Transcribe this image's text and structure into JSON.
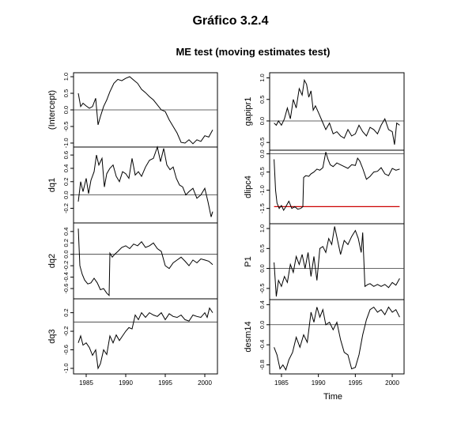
{
  "page": {
    "header_title": "Gráfico 3.2.4",
    "chart_title": "ME test (moving estimates test)",
    "x_axis_title": "Time"
  },
  "chart_data": {
    "type": "line",
    "title": "ME test (moving estimates test)",
    "x_ticks": [
      1985,
      1990,
      1995,
      2000
    ],
    "x_range": [
      1983.4,
      2001.6
    ],
    "x_axis_title": "Time",
    "panels": [
      {
        "column": "left",
        "label": "(Intercept)",
        "ylim": [
          -1.12,
          1.12
        ],
        "y_ticks": [
          1.0,
          0.5,
          0.0,
          -0.5,
          -1.0
        ],
        "y_tick_labels": [
          "1.0",
          "0.5",
          "0.0",
          "-0.5",
          "-1.0"
        ],
        "ref_lines": [
          0
        ],
        "boundary_line": null,
        "x": [
          1984.0,
          1984.3,
          1984.6,
          1985.0,
          1985.4,
          1985.8,
          1986.2,
          1986.5,
          1986.8,
          1987.2,
          1987.6,
          1988.0,
          1988.5,
          1989.0,
          1989.5,
          1990.0,
          1990.5,
          1991.0,
          1991.5,
          1992.0,
          1992.5,
          1993.0,
          1993.5,
          1994.0,
          1994.5,
          1995.0,
          1995.5,
          1996.0,
          1996.5,
          1997.0,
          1997.5,
          1998.0,
          1998.5,
          1999.0,
          1999.5,
          2000.0,
          2000.5,
          2001.0
        ],
        "y": [
          0.5,
          0.1,
          0.2,
          0.12,
          0.05,
          0.1,
          0.35,
          -0.45,
          -0.2,
          0.1,
          0.3,
          0.55,
          0.8,
          0.92,
          0.88,
          0.95,
          1.0,
          0.9,
          0.8,
          0.62,
          0.52,
          0.4,
          0.3,
          0.15,
          0.0,
          -0.05,
          -0.3,
          -0.5,
          -0.7,
          -0.98,
          -1.0,
          -0.9,
          -1.02,
          -0.9,
          -0.95,
          -0.78,
          -0.82,
          -0.6
        ]
      },
      {
        "column": "left",
        "label": "dq1",
        "ylim": [
          -0.42,
          0.72
        ],
        "y_ticks": [
          0.6,
          0.4,
          0.2,
          0.0,
          -0.2
        ],
        "y_tick_labels": [
          "0.6",
          "0.4",
          "0.2",
          "0.0",
          "-0.2"
        ],
        "ref_lines": [
          0
        ],
        "boundary_line": null,
        "x": [
          1984.0,
          1984.3,
          1984.6,
          1985.0,
          1985.3,
          1985.6,
          1986.0,
          1986.3,
          1986.6,
          1987.0,
          1987.3,
          1987.6,
          1988.0,
          1988.4,
          1988.8,
          1989.2,
          1989.6,
          1990.0,
          1990.4,
          1990.8,
          1991.2,
          1991.6,
          1992.0,
          1992.5,
          1993.0,
          1993.5,
          1994.0,
          1994.4,
          1994.8,
          1995.2,
          1995.6,
          1996.0,
          1996.4,
          1996.8,
          1997.2,
          1997.6,
          1998.0,
          1998.5,
          1999.0,
          1999.5,
          2000.0,
          2000.4,
          2000.8,
          2001.0
        ],
        "y": [
          -0.1,
          0.2,
          0.05,
          0.25,
          0.02,
          0.22,
          0.35,
          0.6,
          0.45,
          0.55,
          0.12,
          0.32,
          0.4,
          0.45,
          0.28,
          0.2,
          0.35,
          0.32,
          0.25,
          0.55,
          0.3,
          0.35,
          0.28,
          0.42,
          0.52,
          0.55,
          0.72,
          0.5,
          0.7,
          0.45,
          0.38,
          0.42,
          0.25,
          0.15,
          0.12,
          0.0,
          0.05,
          0.1,
          -0.05,
          0.0,
          0.1,
          -0.1,
          -0.33,
          -0.25
        ]
      },
      {
        "column": "left",
        "label": "dq2",
        "ylim": [
          -0.78,
          0.55
        ],
        "y_ticks": [
          0.4,
          0.2,
          0.0,
          -0.2,
          -0.4,
          -0.6
        ],
        "y_tick_labels": [
          "0.4",
          "0.2",
          "0.0",
          "-0.2",
          "-0.4",
          "-0.6"
        ],
        "ref_lines": [
          0
        ],
        "boundary_line": null,
        "x": [
          1984.0,
          1984.2,
          1984.5,
          1984.8,
          1985.2,
          1985.6,
          1986.0,
          1986.4,
          1986.8,
          1987.2,
          1987.6,
          1987.9,
          1988.0,
          1988.3,
          1988.6,
          1989.0,
          1989.5,
          1990.0,
          1990.5,
          1991.0,
          1991.5,
          1992.0,
          1992.5,
          1993.0,
          1993.5,
          1994.0,
          1994.5,
          1995.0,
          1995.5,
          1996.0,
          1996.5,
          1997.0,
          1997.5,
          1998.0,
          1998.5,
          1999.0,
          1999.5,
          2000.0,
          2000.5,
          2001.0
        ],
        "y": [
          0.45,
          -0.2,
          -0.35,
          -0.45,
          -0.52,
          -0.5,
          -0.42,
          -0.5,
          -0.62,
          -0.6,
          -0.68,
          -0.72,
          0.02,
          -0.05,
          0.0,
          0.05,
          0.12,
          0.15,
          0.1,
          0.18,
          0.15,
          0.22,
          0.12,
          0.15,
          0.2,
          0.1,
          0.05,
          -0.2,
          -0.25,
          -0.15,
          -0.1,
          -0.05,
          -0.12,
          -0.2,
          -0.1,
          -0.15,
          -0.08,
          -0.1,
          -0.12,
          -0.18
        ]
      },
      {
        "column": "left",
        "label": "dq3",
        "ylim": [
          -1.12,
          0.5
        ],
        "y_ticks": [
          0.2,
          -0.2,
          -0.6,
          -1.0
        ],
        "y_tick_labels": [
          "0.2",
          "-0.2",
          "-0.6",
          "-1.0"
        ],
        "ref_lines": [
          0
        ],
        "boundary_line": null,
        "x": [
          1984.0,
          1984.3,
          1984.6,
          1985.0,
          1985.4,
          1985.8,
          1986.2,
          1986.5,
          1986.8,
          1987.2,
          1987.6,
          1988.0,
          1988.4,
          1988.8,
          1989.2,
          1989.6,
          1990.0,
          1990.4,
          1990.8,
          1991.2,
          1991.6,
          1992.0,
          1992.5,
          1993.0,
          1993.5,
          1994.0,
          1994.5,
          1995.0,
          1995.5,
          1996.0,
          1996.5,
          1997.0,
          1997.5,
          1998.0,
          1998.5,
          1999.0,
          1999.5,
          2000.0,
          2000.3,
          2000.6,
          2001.0
        ],
        "y": [
          -0.45,
          -0.3,
          -0.5,
          -0.45,
          -0.55,
          -0.72,
          -0.6,
          -1.0,
          -0.9,
          -0.6,
          -0.7,
          -0.3,
          -0.45,
          -0.28,
          -0.4,
          -0.3,
          -0.2,
          -0.12,
          -0.15,
          0.15,
          0.05,
          0.2,
          0.1,
          0.2,
          0.15,
          0.12,
          0.2,
          0.05,
          0.18,
          0.12,
          0.1,
          0.15,
          0.05,
          0.02,
          0.15,
          0.12,
          0.1,
          0.2,
          0.1,
          0.3,
          0.2
        ]
      },
      {
        "column": "right",
        "label": "gapipr1",
        "ylim": [
          -0.68,
          1.12
        ],
        "y_ticks": [
          1.0,
          0.5,
          0.0,
          -0.5
        ],
        "y_tick_labels": [
          "1.0",
          "0.5",
          "0.0",
          "-0.5"
        ],
        "ref_lines": [
          0
        ],
        "boundary_line": null,
        "x": [
          1984.0,
          1984.3,
          1984.6,
          1985.0,
          1985.4,
          1985.8,
          1986.2,
          1986.6,
          1987.0,
          1987.4,
          1987.8,
          1988.1,
          1988.4,
          1988.7,
          1989.0,
          1989.3,
          1989.6,
          1990.0,
          1990.5,
          1991.0,
          1991.5,
          1992.0,
          1992.5,
          1993.0,
          1993.5,
          1994.0,
          1994.5,
          1995.0,
          1995.5,
          1996.0,
          1996.5,
          1997.0,
          1997.5,
          1998.0,
          1998.5,
          1999.0,
          1999.5,
          2000.0,
          2000.3,
          2000.6,
          2001.0
        ],
        "y": [
          -0.05,
          -0.1,
          0.0,
          -0.1,
          0.05,
          0.3,
          0.05,
          0.5,
          0.3,
          0.75,
          0.6,
          0.95,
          0.85,
          0.55,
          0.7,
          0.25,
          0.35,
          0.2,
          0.0,
          -0.2,
          -0.05,
          -0.3,
          -0.25,
          -0.35,
          -0.4,
          -0.2,
          -0.35,
          -0.3,
          -0.1,
          -0.25,
          -0.35,
          -0.15,
          -0.2,
          -0.3,
          -0.1,
          0.05,
          -0.2,
          -0.25,
          -0.55,
          -0.05,
          -0.1
        ]
      },
      {
        "column": "right",
        "label": "dlipc4",
        "ylim": [
          -1.92,
          0.1
        ],
        "y_ticks": [
          0.0,
          -0.5,
          -1.0,
          -1.5
        ],
        "y_tick_labels": [
          "0.0",
          "-0.5",
          "-1.0",
          "-1.5"
        ],
        "ref_lines": [
          0
        ],
        "boundary_line": -1.45,
        "x": [
          1984.0,
          1984.2,
          1984.4,
          1984.7,
          1985.0,
          1985.3,
          1985.6,
          1986.0,
          1986.4,
          1986.8,
          1987.2,
          1987.6,
          1987.9,
          1988.0,
          1988.3,
          1988.7,
          1989.0,
          1989.4,
          1989.8,
          1990.2,
          1990.6,
          1991.0,
          1991.3,
          1991.6,
          1992.0,
          1992.5,
          1993.0,
          1993.5,
          1994.0,
          1994.5,
          1995.0,
          1995.3,
          1995.6,
          1996.0,
          1996.5,
          1997.0,
          1997.5,
          1998.0,
          1998.5,
          1999.0,
          1999.5,
          2000.0,
          2000.5,
          2001.0
        ],
        "y": [
          -0.15,
          -1.0,
          -1.35,
          -1.5,
          -1.42,
          -1.55,
          -1.45,
          -1.3,
          -1.5,
          -1.45,
          -1.52,
          -1.5,
          -1.45,
          -0.65,
          -0.6,
          -0.62,
          -0.55,
          -0.5,
          -0.42,
          -0.45,
          -0.38,
          0.05,
          -0.15,
          -0.3,
          -0.35,
          -0.25,
          -0.3,
          -0.35,
          -0.4,
          -0.3,
          -0.32,
          -0.12,
          -0.2,
          -0.4,
          -0.7,
          -0.62,
          -0.5,
          -0.48,
          -0.38,
          -0.55,
          -0.6,
          -0.4,
          -0.45,
          -0.42
        ]
      },
      {
        "column": "right",
        "label": "P1",
        "ylim": [
          -0.78,
          1.12
        ],
        "y_ticks": [
          1.0,
          0.5,
          0.0,
          -0.5
        ],
        "y_tick_labels": [
          "1.0",
          "0.5",
          "0.0",
          "-0.5"
        ],
        "ref_lines": [
          0
        ],
        "boundary_line": null,
        "x": [
          1984.0,
          1984.3,
          1984.6,
          1985.0,
          1985.4,
          1985.8,
          1986.2,
          1986.6,
          1987.0,
          1987.4,
          1987.8,
          1988.2,
          1988.6,
          1989.0,
          1989.4,
          1989.8,
          1990.2,
          1990.6,
          1991.0,
          1991.4,
          1991.8,
          1992.2,
          1992.6,
          1993.0,
          1993.5,
          1994.0,
          1994.5,
          1995.0,
          1995.4,
          1995.8,
          1996.0,
          1996.3,
          1996.7,
          1997.0,
          1997.5,
          1998.0,
          1998.5,
          1999.0,
          1999.5,
          2000.0,
          2000.5,
          2001.0
        ],
        "y": [
          0.15,
          -0.7,
          -0.3,
          -0.45,
          -0.2,
          -0.35,
          0.1,
          -0.1,
          0.3,
          0.1,
          0.35,
          0.0,
          0.4,
          -0.2,
          0.3,
          -0.3,
          0.5,
          0.55,
          0.4,
          0.75,
          0.6,
          1.05,
          0.7,
          0.35,
          0.7,
          0.6,
          0.8,
          0.95,
          0.75,
          0.4,
          0.9,
          -0.45,
          -0.4,
          -0.38,
          -0.45,
          -0.4,
          -0.45,
          -0.4,
          -0.48,
          -0.35,
          -0.42,
          -0.25
        ]
      },
      {
        "column": "right",
        "label": "desm14",
        "ylim": [
          -0.98,
          0.5
        ],
        "y_ticks": [
          0.4,
          0.0,
          -0.4,
          -0.8
        ],
        "y_tick_labels": [
          "0.4",
          "0.0",
          "-0.4",
          "-0.8"
        ],
        "ref_lines": [
          0
        ],
        "boundary_line": null,
        "x": [
          1984.0,
          1984.4,
          1984.8,
          1985.2,
          1985.6,
          1986.0,
          1986.5,
          1987.0,
          1987.5,
          1988.0,
          1988.5,
          1989.0,
          1989.4,
          1989.8,
          1990.2,
          1990.6,
          1991.0,
          1991.5,
          1992.0,
          1992.5,
          1993.0,
          1993.5,
          1994.0,
          1994.5,
          1995.0,
          1995.5,
          1996.0,
          1996.5,
          1997.0,
          1997.5,
          1998.0,
          1998.5,
          1999.0,
          1999.5,
          2000.0,
          2000.5,
          2001.0
        ],
        "y": [
          -0.45,
          -0.6,
          -0.88,
          -0.8,
          -0.9,
          -0.7,
          -0.55,
          -0.25,
          -0.45,
          -0.2,
          -0.35,
          0.25,
          0.05,
          0.35,
          0.15,
          0.3,
          0.0,
          0.05,
          -0.1,
          0.05,
          -0.3,
          -0.55,
          -0.6,
          -0.88,
          -0.85,
          -0.6,
          -0.2,
          0.1,
          0.3,
          0.35,
          0.25,
          0.3,
          0.2,
          0.35,
          0.25,
          0.3,
          0.15
        ]
      }
    ]
  }
}
